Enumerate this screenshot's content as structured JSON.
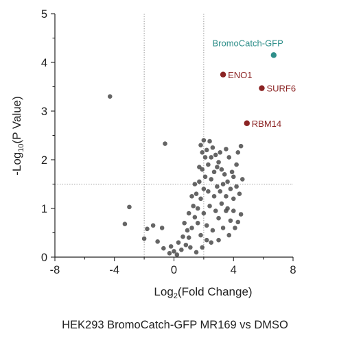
{
  "chart_data": {
    "type": "scatter",
    "title": "",
    "caption": "HEK293 BromoCatch-GFP MR169 vs DMSO",
    "xlabel": "Log2(Fold Change)",
    "xlabel_parts": {
      "pre": "Log",
      "sub": "2",
      "post": "(Fold Change)"
    },
    "ylabel": "-Log10(P Value)",
    "ylabel_parts": {
      "pre": "-Log",
      "sub": "10",
      "post": "(P Value)"
    },
    "xlim": [
      -8,
      8
    ],
    "ylim": [
      0,
      5
    ],
    "xticks": [
      -8,
      -4,
      0,
      4,
      8
    ],
    "yticks": [
      0,
      1,
      2,
      3,
      4,
      5
    ],
    "grid": false,
    "thresholds": {
      "x": [
        -2,
        2
      ],
      "y": 1.5
    },
    "colors": {
      "background_points": "#4a4a4a",
      "target": "#2f8f8a",
      "hits": "#8b2323",
      "threshold_lines": "#999999"
    },
    "highlighted": [
      {
        "label": "BromoCatch-GFP",
        "x": 6.7,
        "y": 4.15,
        "group": "target"
      },
      {
        "label": "ENO1",
        "x": 3.3,
        "y": 3.75,
        "group": "hit"
      },
      {
        "label": "SURF6",
        "x": 5.9,
        "y": 3.47,
        "group": "hit"
      },
      {
        "label": "RBM14",
        "x": 4.9,
        "y": 2.75,
        "group": "hit"
      }
    ],
    "points": [
      [
        -4.3,
        3.3
      ],
      [
        -0.6,
        2.33
      ],
      [
        -3.0,
        1.03
      ],
      [
        -3.3,
        0.68
      ],
      [
        -1.4,
        0.65
      ],
      [
        -2.0,
        0.38
      ],
      [
        -1.8,
        0.58
      ],
      [
        -0.8,
        0.6
      ],
      [
        -1.1,
        0.32
      ],
      [
        -0.7,
        0.18
      ],
      [
        -0.3,
        0.08
      ],
      [
        0.0,
        0.12
      ],
      [
        0.2,
        0.05
      ],
      [
        0.5,
        0.15
      ],
      [
        0.8,
        0.25
      ],
      [
        1.0,
        0.4
      ],
      [
        1.2,
        0.6
      ],
      [
        1.4,
        0.82
      ],
      [
        1.6,
        1.0
      ],
      [
        1.8,
        1.2
      ],
      [
        2.0,
        1.4
      ],
      [
        1.5,
        1.3
      ],
      [
        1.7,
        1.55
      ],
      [
        1.9,
        1.8
      ],
      [
        2.1,
        2.05
      ],
      [
        1.8,
        2.3
      ],
      [
        2.0,
        2.4
      ],
      [
        2.2,
        2.2
      ],
      [
        2.4,
        2.38
      ],
      [
        2.6,
        2.25
      ],
      [
        2.8,
        2.1
      ],
      [
        3.0,
        1.95
      ],
      [
        3.2,
        1.8
      ],
      [
        3.4,
        1.7
      ],
      [
        3.6,
        1.55
      ],
      [
        3.8,
        1.4
      ],
      [
        4.0,
        1.65
      ],
      [
        4.2,
        1.9
      ],
      [
        4.3,
        2.15
      ],
      [
        4.5,
        2.28
      ],
      [
        3.5,
        2.22
      ],
      [
        3.1,
        2.15
      ],
      [
        2.9,
        1.85
      ],
      [
        2.5,
        1.6
      ],
      [
        2.3,
        1.35
      ],
      [
        2.7,
        1.25
      ],
      [
        3.2,
        1.1
      ],
      [
        3.5,
        0.95
      ],
      [
        3.8,
        0.75
      ],
      [
        4.1,
        0.6
      ],
      [
        4.3,
        0.72
      ],
      [
        4.5,
        0.88
      ],
      [
        4.4,
        1.3
      ],
      [
        4.0,
        1.2
      ],
      [
        3.0,
        0.8
      ],
      [
        2.6,
        0.55
      ],
      [
        2.2,
        0.35
      ],
      [
        1.9,
        0.2
      ],
      [
        1.5,
        0.1
      ],
      [
        1.1,
        0.2
      ],
      [
        0.9,
        0.55
      ],
      [
        1.3,
        1.05
      ],
      [
        1.6,
        0.7
      ],
      [
        2.0,
        0.9
      ],
      [
        2.4,
        1.05
      ],
      [
        2.8,
        0.95
      ],
      [
        3.3,
        0.6
      ],
      [
        3.7,
        0.45
      ],
      [
        2.2,
        0.65
      ],
      [
        1.8,
        0.45
      ],
      [
        2.5,
        0.3
      ],
      [
        3.0,
        0.35
      ],
      [
        0.3,
        0.3
      ],
      [
        0.6,
        0.42
      ],
      [
        -0.2,
        0.22
      ],
      [
        1.4,
        1.5
      ],
      [
        1.2,
        1.25
      ],
      [
        2.3,
        1.9
      ],
      [
        2.5,
        2.05
      ],
      [
        3.3,
        1.5
      ],
      [
        3.9,
        1.75
      ],
      [
        4.2,
        1.45
      ],
      [
        2.9,
        1.45
      ],
      [
        3.5,
        1.25
      ],
      [
        1.7,
        1.85
      ],
      [
        2.1,
        1.65
      ],
      [
        1.9,
        2.15
      ],
      [
        3.7,
        2.05
      ],
      [
        4.6,
        1.6
      ],
      [
        0.7,
        0.7
      ],
      [
        1.0,
        0.9
      ],
      [
        2.7,
        1.75
      ],
      [
        3.1,
        1.35
      ],
      [
        3.6,
        1.0
      ],
      [
        4.0,
        0.95
      ]
    ]
  }
}
